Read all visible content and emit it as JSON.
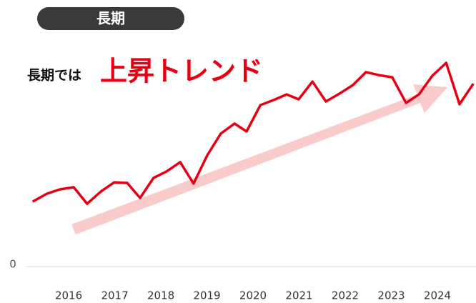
{
  "chart_data": {
    "type": "line",
    "title": "長期",
    "annotation": [
      "長期では",
      "上昇トレンド"
    ],
    "x": [
      2015.22,
      2015.53,
      2015.81,
      2016.11,
      2016.4,
      2016.7,
      2016.99,
      2017.27,
      2017.55,
      2017.84,
      2018.12,
      2018.42,
      2018.71,
      2019.01,
      2019.3,
      2019.6,
      2019.86,
      2020.16,
      2020.45,
      2020.73,
      2020.99,
      2021.29,
      2021.58,
      2021.88,
      2022.17,
      2022.45,
      2022.73,
      2023.02,
      2023.32,
      2023.6,
      2023.89,
      2024.19,
      2024.48,
      2024.78
    ],
    "series": [
      {
        "color": "#e60012",
        "values": [
          30.3,
          34,
          36,
          37,
          29.3,
          35,
          39.3,
          39,
          32,
          41.3,
          44.3,
          48.7,
          38.7,
          52,
          62,
          66.7,
          63,
          75.3,
          77.7,
          80.3,
          78,
          86.3,
          77,
          80.7,
          84.7,
          90.7,
          89.3,
          88.3,
          76.3,
          80.3,
          89,
          95,
          75.7,
          85.3
        ]
      }
    ],
    "xlim": [
      2015.1,
      2024.8
    ],
    "xticks": [
      2016,
      2017,
      2018,
      2019,
      2020,
      2021,
      2022,
      2023,
      2024
    ],
    "ylim": [
      0,
      100
    ],
    "yticks": [
      0
    ]
  }
}
